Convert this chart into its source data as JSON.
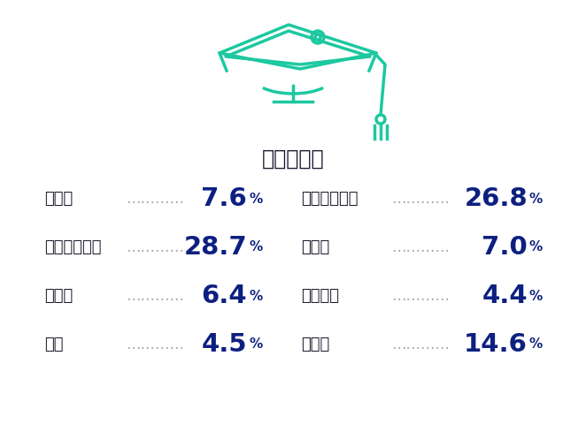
{
  "title": "学部別比率",
  "background_color": "#ffffff",
  "title_color": "#1a1a2e",
  "label_color": "#1a1a2e",
  "value_color": "#0d2080",
  "icon_color": "#1dc8a0",
  "rows_left": [
    {
      "label": "法律系",
      "value": "7.6"
    },
    {
      "label": "文学・語学系",
      "value": "28.7"
    },
    {
      "label": "商学系",
      "value": "6.4"
    },
    {
      "label": "理系",
      "value": "4.5"
    }
  ],
  "rows_right": [
    {
      "label": "経済・経営系",
      "value": "26.8"
    },
    {
      "label": "国際系",
      "value": "7.0"
    },
    {
      "label": "社会学系",
      "value": "4.4"
    },
    {
      "label": "その他",
      "value": "14.6"
    }
  ],
  "figsize": [
    6.62,
    4.8
  ],
  "dpi": 100
}
